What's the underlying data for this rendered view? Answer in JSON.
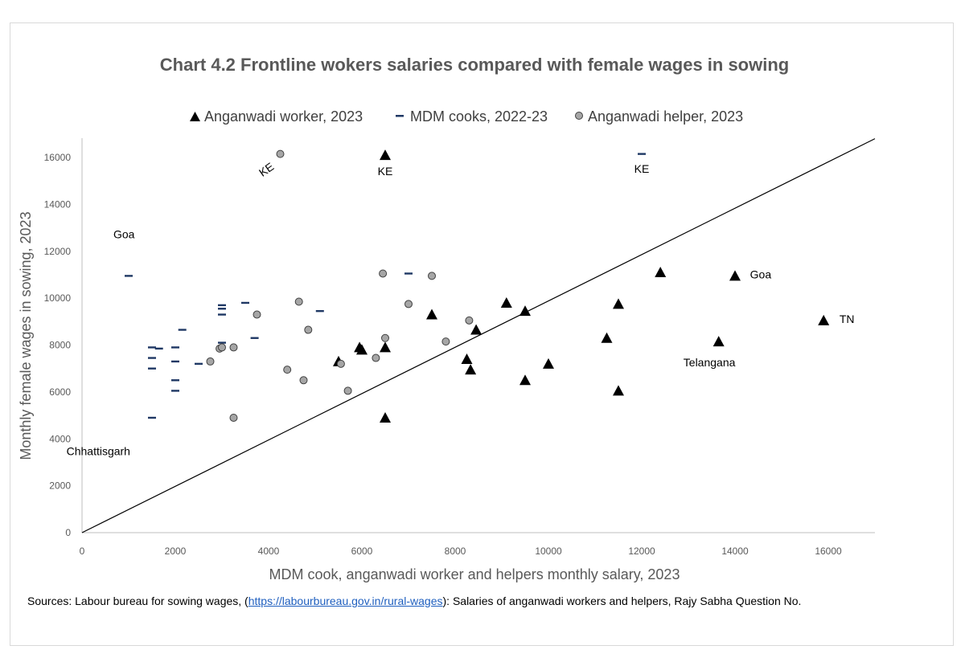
{
  "chart_data": {
    "type": "scatter",
    "title": "Chart 4.2 Frontline wokers salaries compared with female wages in sowing",
    "xlabel": "MDM cook, anganwadi worker and helpers monthly salary, 2023",
    "ylabel": "Monthly female wages in sowing, 2023",
    "xlim": [
      0,
      17000
    ],
    "ylim": [
      0,
      16000
    ],
    "x_ticks": [
      0,
      2000,
      4000,
      6000,
      8000,
      10000,
      12000,
      14000,
      16000
    ],
    "y_ticks": [
      0,
      2000,
      4000,
      6000,
      8000,
      10000,
      12000,
      14000,
      16000
    ],
    "x_tick_labels": [
      "0",
      "2000",
      "4000",
      "6000",
      "8000",
      "10000",
      "12000",
      "14000",
      "16000"
    ],
    "y_tick_labels": [
      "0",
      "2000",
      "4000",
      "6000",
      "8000",
      "10000",
      "12000",
      "14000",
      "16000"
    ],
    "legend_position": "top",
    "reference_line": {
      "from": [
        0,
        0
      ],
      "to": [
        17000,
        16800
      ]
    },
    "series": [
      {
        "name": "Anganwadi worker, 2023",
        "marker": "triangle",
        "color": "#000000",
        "points": [
          [
            6500,
            16100
          ],
          [
            6500,
            4900
          ],
          [
            5500,
            7300
          ],
          [
            5950,
            7900
          ],
          [
            6000,
            7800
          ],
          [
            6500,
            7900
          ],
          [
            7500,
            9300
          ],
          [
            8250,
            7400
          ],
          [
            8330,
            6950
          ],
          [
            8450,
            8650
          ],
          [
            9100,
            9800
          ],
          [
            9500,
            9450
          ],
          [
            9500,
            6500
          ],
          [
            10000,
            7200
          ],
          [
            11250,
            8300
          ],
          [
            11500,
            9750
          ],
          [
            11500,
            6050
          ],
          [
            12400,
            11100
          ],
          [
            13650,
            8150
          ],
          [
            14000,
            10950
          ],
          [
            15900,
            9050
          ]
        ]
      },
      {
        "name": "MDM cooks, 2022-23",
        "marker": "dash",
        "color": "#1f3864",
        "points": [
          [
            1000,
            10950
          ],
          [
            1500,
            7900
          ],
          [
            1500,
            7450
          ],
          [
            1500,
            7000
          ],
          [
            1500,
            4900
          ],
          [
            1650,
            7850
          ],
          [
            2000,
            7900
          ],
          [
            2000,
            7300
          ],
          [
            2000,
            6500
          ],
          [
            2000,
            6050
          ],
          [
            2150,
            8650
          ],
          [
            2500,
            7200
          ],
          [
            3000,
            9700
          ],
          [
            3000,
            9550
          ],
          [
            3000,
            9300
          ],
          [
            3000,
            8100
          ],
          [
            3500,
            9800
          ],
          [
            3700,
            8300
          ],
          [
            5100,
            9450
          ],
          [
            7000,
            11050
          ],
          [
            12000,
            16150
          ]
        ]
      },
      {
        "name": "Anganwadi helper, 2023",
        "marker": "circle",
        "color": "#a6a6a6",
        "points": [
          [
            4250,
            16150
          ],
          [
            2750,
            7300
          ],
          [
            2950,
            7850
          ],
          [
            3000,
            7900
          ],
          [
            3250,
            7900
          ],
          [
            3250,
            4900
          ],
          [
            3750,
            9300
          ],
          [
            4400,
            6950
          ],
          [
            4650,
            9850
          ],
          [
            4750,
            6500
          ],
          [
            4850,
            8650
          ],
          [
            5550,
            7200
          ],
          [
            5700,
            6050
          ],
          [
            6300,
            7450
          ],
          [
            6450,
            11050
          ],
          [
            6500,
            8300
          ],
          [
            7000,
            9750
          ],
          [
            7500,
            10950
          ],
          [
            7800,
            8150
          ],
          [
            8300,
            9050
          ]
        ]
      }
    ],
    "annotations": [
      {
        "text": "KE",
        "at": [
          4000,
          15350
        ],
        "rotation": -35
      },
      {
        "text": "KE",
        "at": [
          6500,
          15250
        ],
        "rotation": 0
      },
      {
        "text": "KE",
        "at": [
          12000,
          15350
        ],
        "rotation": 0
      },
      {
        "text": "Goa",
        "at": [
          900,
          12550
        ],
        "rotation": 0
      },
      {
        "text": "Goa",
        "at": [
          14550,
          10850
        ],
        "rotation": 0
      },
      {
        "text": "TN",
        "at": [
          16400,
          8950
        ],
        "rotation": 0
      },
      {
        "text": "Telangana",
        "at": [
          13450,
          7100
        ],
        "rotation": 0
      },
      {
        "text": "Chhattisgarh",
        "at": [
          350,
          3300
        ],
        "rotation": 0
      }
    ]
  },
  "source_note": {
    "prefix": "Sources: Labour bureau for sowing wages, (",
    "link_text": "https://labourbureau.gov.in/rural-wages",
    "suffix": "): Salaries of anganwadi workers and helpers, Rajy Sabha Question No."
  }
}
